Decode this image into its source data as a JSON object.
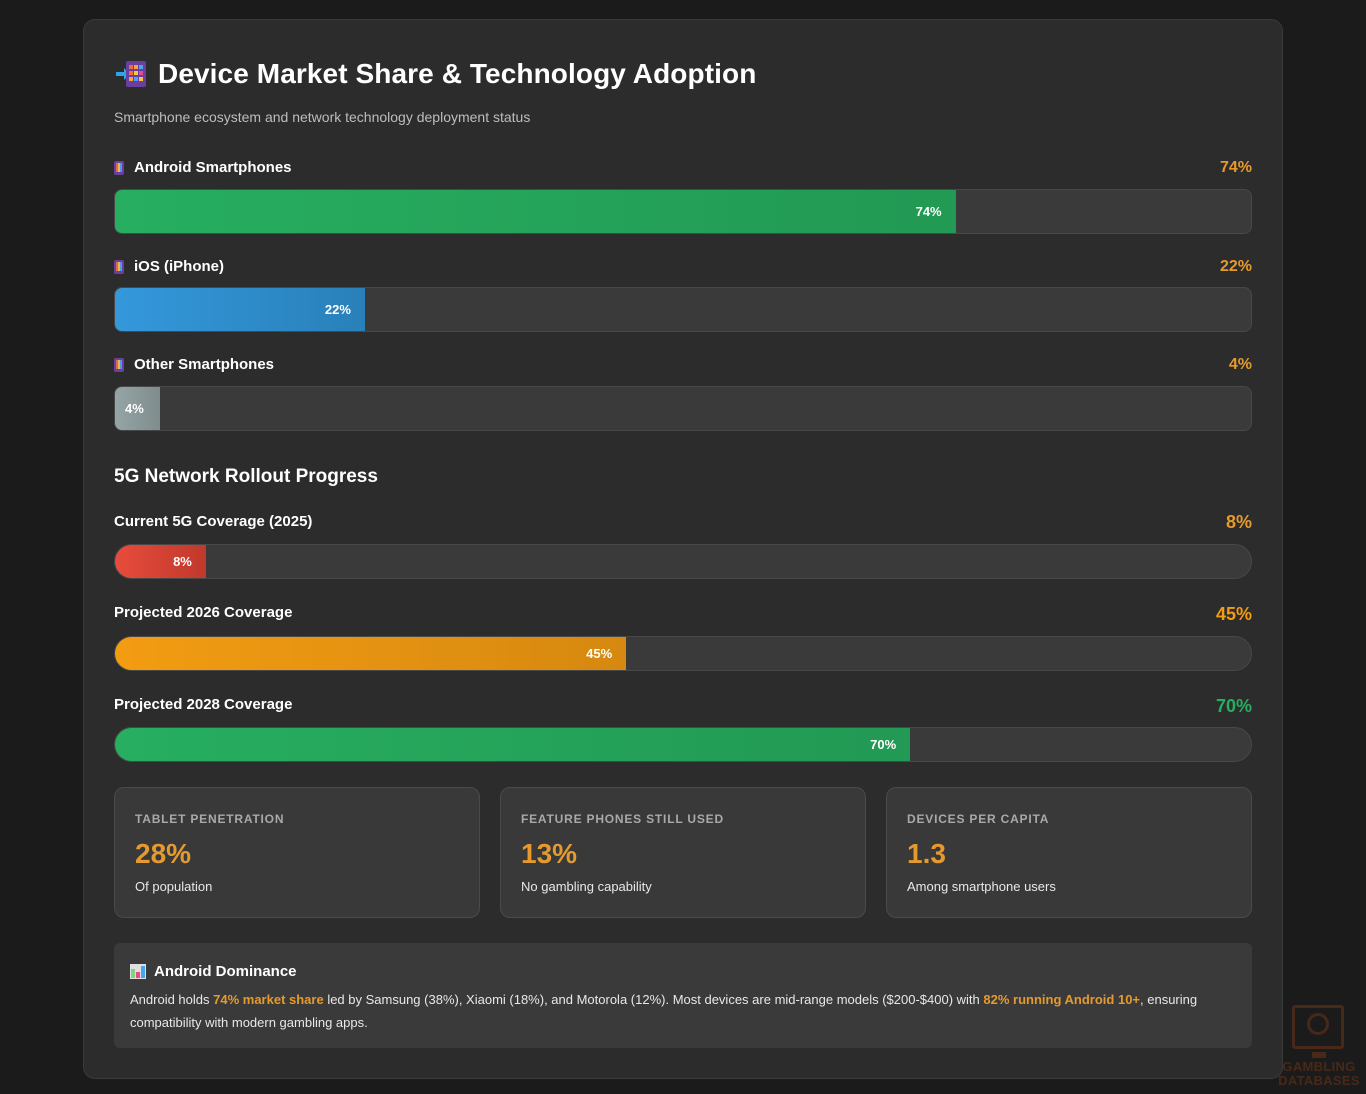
{
  "header": {
    "icon": "mobile-arrow-icon",
    "title": "Device Market Share & Technology Adoption",
    "subtitle": "Smartphone ecosystem and network technology deployment status"
  },
  "market_share": [
    {
      "label": "Android Smartphones",
      "icon": "mobile-phone-icon",
      "value_text": "74%",
      "value": 74,
      "bar_label": "74%",
      "color": "#27ae60"
    },
    {
      "label": "iOS (iPhone)",
      "icon": "mobile-phone-icon",
      "value_text": "22%",
      "value": 22,
      "bar_label": "22%",
      "color": "#3498db"
    },
    {
      "label": "Other Smartphones",
      "icon": "mobile-phone-icon",
      "value_text": "4%",
      "value": 4,
      "bar_label": "4%",
      "color": "#95a5a6"
    }
  ],
  "rollout": {
    "heading": "5G Network Rollout Progress",
    "items": [
      {
        "label": "Current 5G Coverage (2025)",
        "value_text": "8%",
        "value": 8,
        "bar_label": "8%",
        "color": "#e74c3c",
        "value_color": "#e69a2e"
      },
      {
        "label": "Projected 2026 Coverage",
        "value_text": "45%",
        "value": 45,
        "bar_label": "45%",
        "color": "#f39c12",
        "value_color": "#f39c12"
      },
      {
        "label": "Projected 2028 Coverage",
        "value_text": "70%",
        "value": 70,
        "bar_label": "70%",
        "color": "#27ae60",
        "value_color": "#27ae60"
      }
    ]
  },
  "stats": [
    {
      "label": "TABLET PENETRATION",
      "value": "28%",
      "desc": "Of population"
    },
    {
      "label": "FEATURE PHONES STILL USED",
      "value": "13%",
      "desc": "No gambling capability"
    },
    {
      "label": "DEVICES PER CAPITA",
      "value": "1.3",
      "desc": "Among smartphone users"
    }
  ],
  "note": {
    "icon": "bar-chart-icon",
    "title": "Android Dominance",
    "text_1": "Android holds ",
    "highlight_1": "74% market share",
    "text_2": " led by Samsung (38%), Xiaomi (18%), and Motorola (12%). Most devices are mid-range models ($200-$400) with ",
    "highlight_2": "82% running Android 10+",
    "text_3": ", ensuring compatibility with modern gambling apps."
  },
  "watermark": {
    "line1": "GAMBLING",
    "line2": "DATABASES"
  },
  "colors": {
    "accent": "#e69a2e",
    "card_bg": "#2c2c2c",
    "page_bg": "#1b1b1b"
  }
}
